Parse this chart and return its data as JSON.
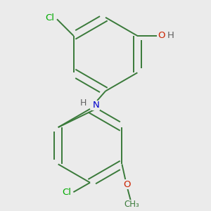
{
  "bg_color": "#ebebeb",
  "atom_colors": {
    "C": "#3a7a3a",
    "Cl": "#00aa00",
    "O": "#cc2200",
    "N": "#0000cc",
    "H": "#606060"
  },
  "bond_color": "#3a7a3a",
  "bond_width": 1.4,
  "font_size": 9.5
}
